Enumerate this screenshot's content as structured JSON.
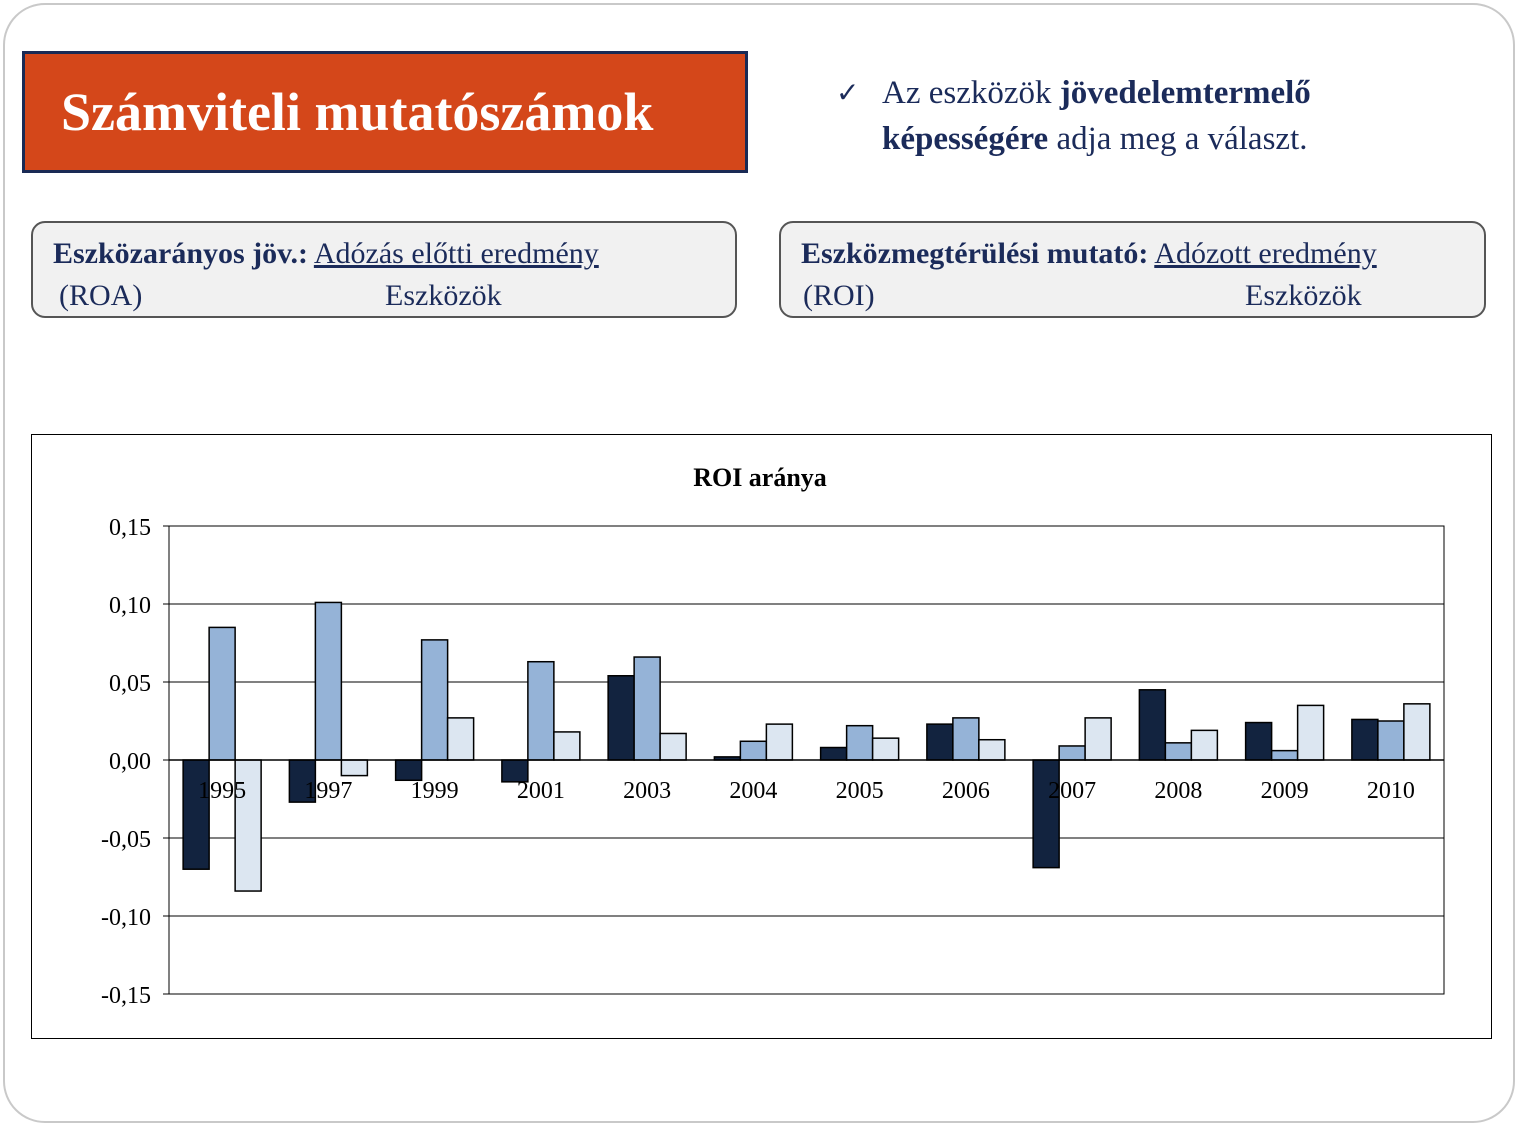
{
  "slide": {
    "title": "Számviteli mutatószámok",
    "bullet": {
      "check_icon": "checkmark-icon",
      "text_before": "Az eszközök ",
      "text_bold": "jövedelemtermelő képességére",
      "text_after": " adja meg a választ."
    },
    "roa_box": {
      "label": "Eszközarányos jöv.:",
      "numerator": "Adózás előtti eredmény",
      "abbrev": "(ROA)",
      "denominator": "Eszközök"
    },
    "roi_box": {
      "label": "Eszközmegtérülési mutató:",
      "numerator": "Adózott eredmény",
      "abbrev": "(ROI)",
      "denominator": "Eszközök"
    }
  },
  "colors": {
    "title_bg": "#d4471a",
    "title_border": "#1a2a55",
    "text_navy": "#1b2b5a",
    "series": [
      "#12233f",
      "#95b3d7",
      "#dce6f1"
    ]
  },
  "chart_data": {
    "type": "bar",
    "title": "ROI aránya",
    "xlabel": "",
    "ylabel": "",
    "ylim": [
      -0.15,
      0.15
    ],
    "yticks": [
      "0,15",
      "0,10",
      "0,05",
      "0,00",
      "-0,05",
      "-0,10",
      "-0,15"
    ],
    "ytick_values": [
      0.15,
      0.1,
      0.05,
      0.0,
      -0.05,
      -0.1,
      -0.15
    ],
    "grid": true,
    "legend": "none",
    "categories": [
      "1995",
      "1997",
      "1999",
      "2001",
      "2003",
      "2004",
      "2005",
      "2006",
      "2007",
      "2008",
      "2009",
      "2010"
    ],
    "series": [
      {
        "values": [
          -0.07,
          -0.027,
          -0.013,
          -0.014,
          0.054,
          0.002,
          0.008,
          0.023,
          -0.069,
          0.045,
          0.024,
          0.026
        ]
      },
      {
        "values": [
          0.085,
          0.101,
          0.077,
          0.063,
          0.066,
          0.012,
          0.022,
          0.027,
          0.009,
          0.011,
          0.006,
          0.025
        ]
      },
      {
        "values": [
          -0.084,
          -0.01,
          0.027,
          0.018,
          0.017,
          0.023,
          0.014,
          0.013,
          0.027,
          0.019,
          0.035,
          0.036
        ]
      }
    ]
  }
}
